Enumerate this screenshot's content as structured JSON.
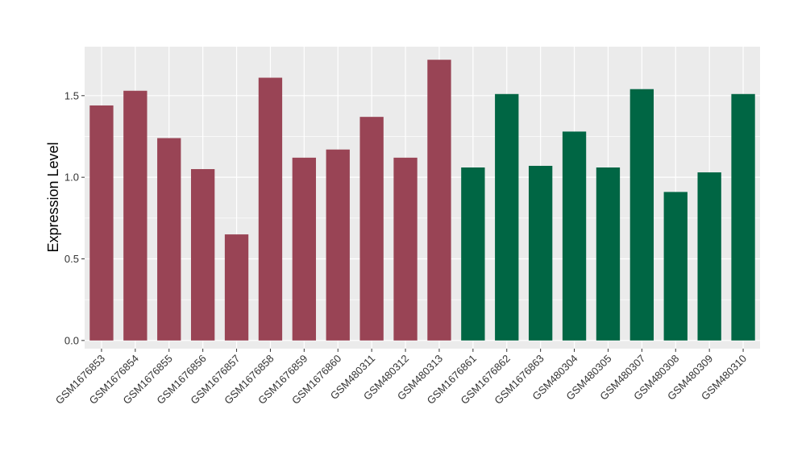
{
  "chart_data": {
    "type": "bar",
    "title": "",
    "xlabel": "",
    "ylabel": "Expression Level",
    "ylim": [
      -0.05,
      1.8
    ],
    "yticks": [
      0.0,
      0.5,
      1.0,
      1.5
    ],
    "ytick_labels": [
      "0.0",
      "0.5",
      "1.0",
      "1.5"
    ],
    "grid": true,
    "categories": [
      "GSM1676853",
      "GSM1676854",
      "GSM1676855",
      "GSM1676856",
      "GSM1676857",
      "GSM1676858",
      "GSM1676859",
      "GSM1676860",
      "GSM480311",
      "GSM480312",
      "GSM480313",
      "GSM1676861",
      "GSM1676862",
      "GSM1676863",
      "GSM480304",
      "GSM480305",
      "GSM480307",
      "GSM480308",
      "GSM480309",
      "GSM480310"
    ],
    "values": [
      1.44,
      1.53,
      1.24,
      1.05,
      0.65,
      1.61,
      1.12,
      1.17,
      1.37,
      1.12,
      1.72,
      1.06,
      1.51,
      1.07,
      1.28,
      1.06,
      1.54,
      0.91,
      1.03,
      1.51
    ],
    "groups": [
      0,
      0,
      0,
      0,
      0,
      0,
      0,
      0,
      0,
      0,
      0,
      1,
      1,
      1,
      1,
      1,
      1,
      1,
      1,
      1
    ],
    "group_colors": [
      "#994455",
      "#006644"
    ],
    "panel_background": "#EBEBEB",
    "grid_color": "#FFFFFF"
  }
}
